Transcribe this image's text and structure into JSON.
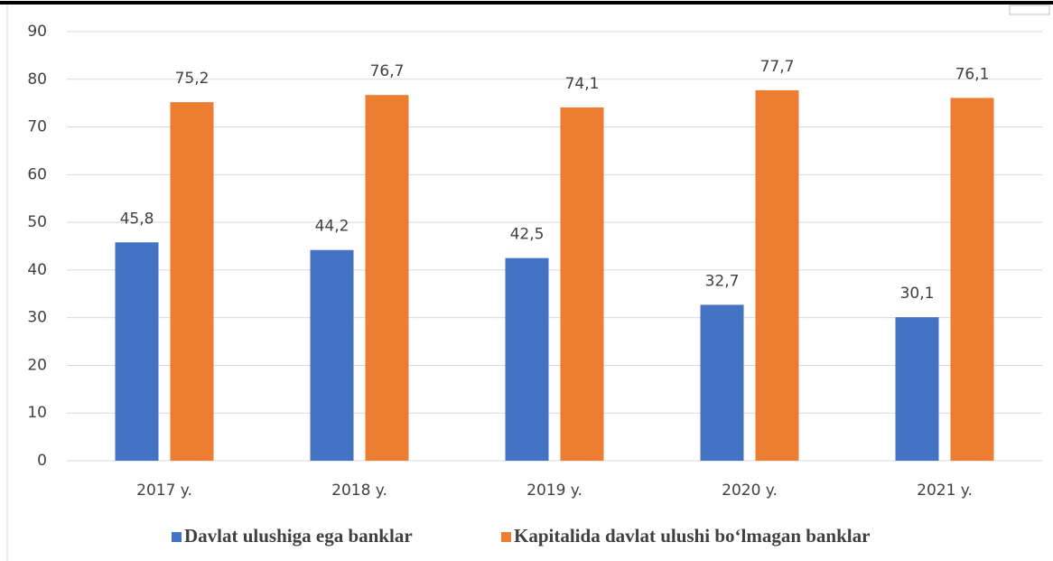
{
  "chart_data": {
    "type": "bar",
    "categories": [
      "2017 y.",
      "2018 y.",
      "2019 y.",
      "2020 y.",
      "2021 y."
    ],
    "series": [
      {
        "name": "Davlat ulushiga ega banklar",
        "color": "#4472c4",
        "values": [
          45.8,
          44.2,
          42.5,
          32.7,
          30.1
        ],
        "value_labels": [
          "45,8",
          "44,2",
          "42,5",
          "32,7",
          "30,1"
        ]
      },
      {
        "name": "Kapitalida davlat ulushi bo‘lmagan banklar",
        "color": "#ed7d31",
        "values": [
          75.2,
          76.7,
          74.1,
          77.7,
          76.1
        ],
        "value_labels": [
          "75,2",
          "76,7",
          "74,1",
          "77,7",
          "76,1"
        ]
      }
    ],
    "ylim": [
      0,
      90
    ],
    "yticks": [
      0,
      10,
      20,
      30,
      40,
      50,
      60,
      70,
      80,
      90
    ],
    "grid": true,
    "legend": "bottom"
  }
}
